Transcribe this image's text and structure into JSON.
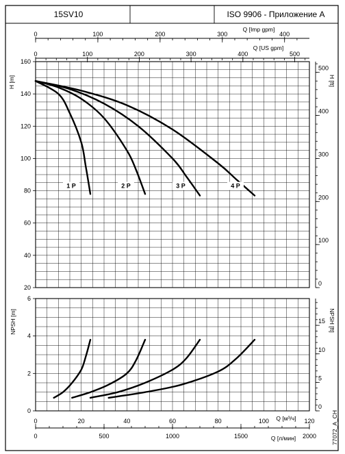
{
  "header": {
    "model": "15SV10",
    "standard": "ISO 9906 - Приложение A",
    "code": "77072_A_CH"
  },
  "chart_data": [
    {
      "type": "line",
      "name": "head",
      "ylabel_left": "H [m]",
      "ylabel_right": "H [ft]",
      "ylim": [
        20,
        160
      ],
      "yticks": [
        20,
        40,
        60,
        80,
        100,
        120,
        140,
        160
      ],
      "ylim_right": [
        0,
        525
      ],
      "yticks_right": [
        0,
        100,
        200,
        300,
        400,
        500
      ],
      "xlim": [
        0,
        120
      ],
      "top_axes": [
        {
          "label": "Q [Imp gpm]",
          "ticks": [
            0,
            100,
            200,
            300,
            400
          ],
          "per_m3h": 3.666
        },
        {
          "label": "Q [US gpm]",
          "ticks": [
            0,
            100,
            200,
            300,
            400,
            500
          ],
          "per_m3h": 4.403
        }
      ],
      "series": [
        {
          "name": "1 P",
          "x": [
            0,
            10,
            15,
            20,
            22,
            24
          ],
          "y": [
            148,
            140,
            128,
            110,
            95,
            78
          ]
        },
        {
          "name": "2 P",
          "x": [
            0,
            10,
            20,
            30,
            40,
            44,
            48
          ],
          "y": [
            148,
            144,
            137,
            125,
            105,
            93,
            78
          ]
        },
        {
          "name": "3 P",
          "x": [
            0,
            15,
            30,
            45,
            60,
            66,
            72
          ],
          "y": [
            148,
            143,
            134,
            120,
            100,
            89,
            77
          ]
        },
        {
          "name": "4 P",
          "x": [
            0,
            20,
            40,
            60,
            80,
            88,
            96
          ],
          "y": [
            148,
            142,
            133,
            118,
            97,
            87,
            77
          ]
        }
      ]
    },
    {
      "type": "line",
      "name": "npsh",
      "ylabel_left": "NPSH [m]",
      "ylabel_right": "NPSH [ft]",
      "ylim": [
        0,
        6
      ],
      "yticks": [
        0,
        2,
        4,
        6
      ],
      "ylim_right": [
        0,
        19.7
      ],
      "yticks_right": [
        0,
        5,
        10,
        15
      ],
      "xlim": [
        0,
        120
      ],
      "xticks": [
        0,
        20,
        40,
        60,
        80,
        100,
        120
      ],
      "xlabel": "Q [м³/ч]",
      "bottom_axis": {
        "label": "Q [л/мин]",
        "ticks": [
          0,
          500,
          1000,
          1500,
          2000
        ],
        "per_m3h": 16.667
      },
      "series": [
        {
          "name": "1 P",
          "x": [
            8,
            12,
            16,
            20,
            22,
            24
          ],
          "y": [
            0.7,
            1.0,
            1.5,
            2.2,
            2.9,
            3.8
          ]
        },
        {
          "name": "2 P",
          "x": [
            16,
            24,
            32,
            40,
            44,
            48
          ],
          "y": [
            0.7,
            1.0,
            1.4,
            2.0,
            2.7,
            3.8
          ]
        },
        {
          "name": "3 P",
          "x": [
            24,
            36,
            48,
            60,
            66,
            72
          ],
          "y": [
            0.7,
            1.0,
            1.5,
            2.2,
            2.8,
            3.8
          ]
        },
        {
          "name": "4 P",
          "x": [
            32,
            48,
            64,
            80,
            88,
            96
          ],
          "y": [
            0.7,
            1.0,
            1.4,
            2.1,
            2.8,
            3.8
          ]
        }
      ]
    }
  ]
}
